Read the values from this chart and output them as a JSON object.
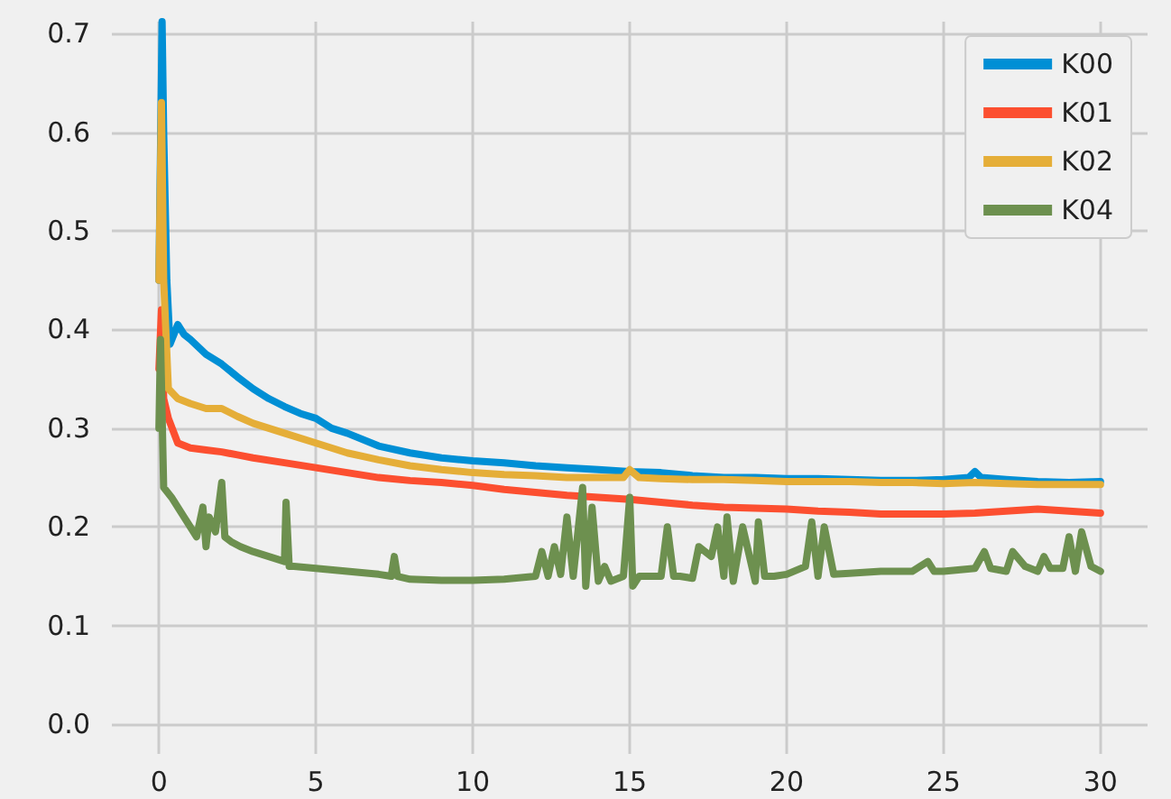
{
  "chart_data": {
    "type": "line",
    "xlim": [
      -1.5,
      31.5
    ],
    "ylim": [
      -0.03,
      0.712
    ],
    "xticks": [
      0,
      5,
      10,
      15,
      20,
      25,
      30
    ],
    "yticks": [
      {
        "value": 0,
        "label": "0.0"
      },
      {
        "value": 0.1,
        "label": "0.1"
      },
      {
        "value": 0.2,
        "label": "0.2"
      },
      {
        "value": 0.3,
        "label": "0.3"
      },
      {
        "value": 0.4,
        "label": "0.4"
      },
      {
        "value": 0.5,
        "label": "0.5"
      },
      {
        "value": 0.6,
        "label": "0.6"
      },
      {
        "value": 0.7,
        "label": "0.7"
      }
    ],
    "grid": true,
    "legend": "top right",
    "marker": "none",
    "line_style": "solid",
    "series": [
      {
        "name": "K00",
        "color": "#008fd5",
        "x": [
          0,
          0.1,
          0.15,
          0.25,
          0.35,
          0.6,
          0.8,
          1,
          1.5,
          2,
          2.5,
          3,
          3.5,
          4,
          4.5,
          5,
          5.5,
          6,
          7,
          8,
          9,
          10,
          11,
          12,
          13,
          14,
          15,
          16,
          17,
          18,
          19,
          20,
          21,
          22,
          23,
          24,
          25,
          25.8,
          26,
          26.2,
          27,
          28,
          29,
          30
        ],
        "values": [
          0.45,
          0.712,
          0.6,
          0.45,
          0.385,
          0.405,
          0.395,
          0.39,
          0.375,
          0.365,
          0.352,
          0.34,
          0.33,
          0.322,
          0.315,
          0.31,
          0.3,
          0.295,
          0.282,
          0.275,
          0.27,
          0.267,
          0.265,
          0.262,
          0.26,
          0.258,
          0.256,
          0.255,
          0.252,
          0.25,
          0.25,
          0.249,
          0.249,
          0.248,
          0.247,
          0.247,
          0.248,
          0.25,
          0.256,
          0.25,
          0.248,
          0.246,
          0.245,
          0.246
        ]
      },
      {
        "name": "K01",
        "color": "#fc4f30",
        "x": [
          0,
          0.08,
          0.15,
          0.3,
          0.6,
          1,
          1.5,
          2,
          2.5,
          3,
          4,
          5,
          6,
          7,
          8,
          9,
          10,
          11,
          12,
          13,
          14,
          15,
          16,
          17,
          18,
          19,
          20,
          21,
          22,
          23,
          24,
          25,
          26,
          27,
          28,
          29,
          30
        ],
        "values": [
          0.36,
          0.42,
          0.33,
          0.31,
          0.285,
          0.28,
          0.278,
          0.276,
          0.273,
          0.27,
          0.265,
          0.26,
          0.255,
          0.25,
          0.247,
          0.245,
          0.242,
          0.238,
          0.235,
          0.232,
          0.23,
          0.228,
          0.225,
          0.222,
          0.22,
          0.219,
          0.218,
          0.216,
          0.215,
          0.213,
          0.213,
          0.213,
          0.214,
          0.216,
          0.218,
          0.216,
          0.214
        ]
      },
      {
        "name": "K02",
        "color": "#e5ae38",
        "x": [
          0,
          0.08,
          0.15,
          0.3,
          0.6,
          1,
          1.5,
          2,
          2.5,
          3,
          4,
          5,
          6,
          7,
          8,
          9,
          10,
          11,
          12,
          13,
          14,
          14.8,
          15,
          15.3,
          16,
          17,
          18,
          19,
          20,
          21,
          22,
          23,
          24,
          25,
          26,
          27,
          28,
          29,
          30
        ],
        "values": [
          0.45,
          0.63,
          0.45,
          0.34,
          0.33,
          0.325,
          0.32,
          0.32,
          0.312,
          0.305,
          0.295,
          0.285,
          0.275,
          0.268,
          0.262,
          0.258,
          0.255,
          0.253,
          0.252,
          0.25,
          0.25,
          0.25,
          0.258,
          0.25,
          0.249,
          0.248,
          0.248,
          0.247,
          0.246,
          0.246,
          0.246,
          0.245,
          0.245,
          0.244,
          0.245,
          0.244,
          0.243,
          0.243,
          0.243
        ]
      },
      {
        "name": "K04",
        "color": "#6d904f",
        "x": [
          0,
          0.05,
          0.15,
          0.4,
          0.8,
          1.2,
          1.4,
          1.5,
          1.6,
          1.8,
          2,
          2.1,
          2.3,
          2.6,
          3,
          3.5,
          4,
          4.05,
          4.15,
          4.3,
          5,
          6,
          7,
          7.4,
          7.5,
          7.6,
          8,
          9,
          10,
          11,
          12,
          12.2,
          12.4,
          12.6,
          12.8,
          13,
          13.2,
          13.5,
          13.6,
          13.8,
          14,
          14.2,
          14.4,
          14.8,
          15,
          15.1,
          15.3,
          16,
          16.2,
          16.4,
          16.6,
          17,
          17.2,
          17.6,
          17.8,
          18,
          18.1,
          18.3,
          18.6,
          19,
          19.1,
          19.3,
          19.6,
          20,
          20.6,
          20.8,
          21,
          21.2,
          21.5,
          22,
          23,
          24,
          24.5,
          24.7,
          25,
          26,
          26.3,
          26.5,
          27,
          27.2,
          27.6,
          28,
          28.2,
          28.4,
          28.8,
          29,
          29.2,
          29.4,
          29.7,
          30
        ],
        "values": [
          0.3,
          0.39,
          0.24,
          0.23,
          0.21,
          0.19,
          0.22,
          0.18,
          0.21,
          0.195,
          0.245,
          0.19,
          0.185,
          0.18,
          0.175,
          0.17,
          0.165,
          0.225,
          0.16,
          0.16,
          0.158,
          0.155,
          0.152,
          0.15,
          0.17,
          0.15,
          0.147,
          0.146,
          0.146,
          0.147,
          0.15,
          0.175,
          0.15,
          0.18,
          0.152,
          0.21,
          0.15,
          0.24,
          0.14,
          0.22,
          0.145,
          0.16,
          0.145,
          0.15,
          0.23,
          0.14,
          0.15,
          0.15,
          0.2,
          0.15,
          0.15,
          0.148,
          0.18,
          0.17,
          0.2,
          0.15,
          0.21,
          0.145,
          0.2,
          0.145,
          0.205,
          0.15,
          0.15,
          0.152,
          0.16,
          0.205,
          0.15,
          0.2,
          0.152,
          0.153,
          0.155,
          0.155,
          0.165,
          0.155,
          0.155,
          0.158,
          0.175,
          0.158,
          0.155,
          0.175,
          0.16,
          0.155,
          0.17,
          0.158,
          0.158,
          0.19,
          0.155,
          0.195,
          0.16,
          0.155
        ]
      }
    ]
  }
}
